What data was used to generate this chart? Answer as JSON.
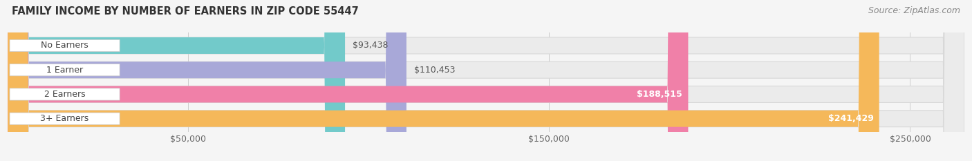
{
  "title": "FAMILY INCOME BY NUMBER OF EARNERS IN ZIP CODE 55447",
  "source": "Source: ZipAtlas.com",
  "categories": [
    "No Earners",
    "1 Earner",
    "2 Earners",
    "3+ Earners"
  ],
  "values": [
    93438,
    110453,
    188515,
    241429
  ],
  "bar_colors": [
    "#72caca",
    "#a8a8d8",
    "#f080a8",
    "#f5b85a"
  ],
  "value_labels": [
    "$93,438",
    "$110,453",
    "$188,515",
    "$241,429"
  ],
  "value_inside": [
    false,
    false,
    true,
    true
  ],
  "x_tick_labels": [
    "$50,000",
    "$150,000",
    "$250,000"
  ],
  "x_tick_values": [
    50000,
    150000,
    250000
  ],
  "xmin": 0,
  "xmax": 265000,
  "title_fontsize": 10.5,
  "source_fontsize": 9,
  "label_fontsize": 9,
  "tick_fontsize": 9,
  "bg_color": "#f5f5f5",
  "bar_bg_color": "#ebebeb",
  "bar_bg_edge_color": "#d8d8d8",
  "label_bg_color": "#ffffff",
  "bar_height": 0.68,
  "bar_gap": 0.32
}
